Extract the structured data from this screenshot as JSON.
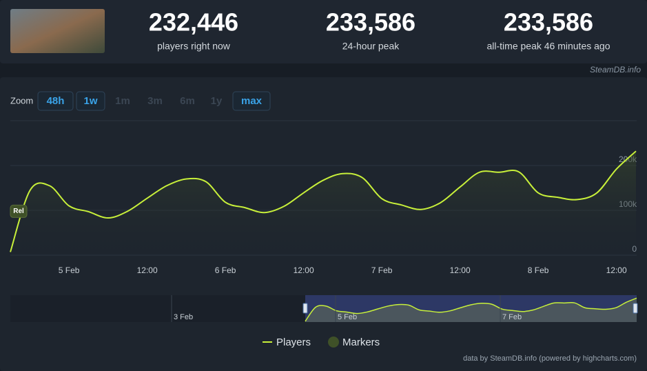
{
  "header": {
    "stats": [
      {
        "value": "232,446",
        "label": "players right now"
      },
      {
        "value": "233,586",
        "label": "24-hour peak"
      },
      {
        "value": "233,586",
        "label": "all-time peak 46 minutes ago"
      }
    ],
    "source": "SteamDB.info"
  },
  "zoom": {
    "label": "Zoom",
    "options": [
      {
        "text": "48h",
        "enabled": true
      },
      {
        "text": "1w",
        "enabled": true
      },
      {
        "text": "1m",
        "enabled": false
      },
      {
        "text": "3m",
        "enabled": false
      },
      {
        "text": "6m",
        "enabled": false
      },
      {
        "text": "1y",
        "enabled": false
      },
      {
        "text": "max",
        "enabled": true
      }
    ]
  },
  "chart_data": {
    "type": "line",
    "categories": [
      null,
      null,
      null,
      "5 Feb",
      null,
      null,
      null,
      "12:00",
      null,
      null,
      null,
      "6 Feb",
      null,
      null,
      null,
      "12:00",
      null,
      null,
      null,
      "7 Feb",
      null,
      null,
      null,
      "12:00",
      null,
      null,
      null,
      "8 Feb",
      null,
      null,
      null,
      "12:00",
      null
    ],
    "series": [
      {
        "name": "Players",
        "color": "#c8f03a",
        "values": [
          7000,
          144000,
          155000,
          110000,
          97000,
          83000,
          98000,
          127000,
          155000,
          170000,
          164000,
          118000,
          106000,
          95000,
          109000,
          139000,
          167000,
          182000,
          173000,
          126000,
          112000,
          102000,
          117000,
          152000,
          185000,
          185000,
          186000,
          139000,
          129000,
          124000,
          139000,
          192000,
          232000
        ]
      }
    ],
    "markers": {
      "name": "Markers",
      "color": "#3f5128",
      "items": [
        "Rel"
      ]
    },
    "ylim": [
      0,
      300000
    ],
    "yticks": [
      {
        "value": 0,
        "label": "0"
      },
      {
        "value": 100000,
        "label": "100k"
      },
      {
        "value": 200000,
        "label": "200k"
      }
    ],
    "grid": true,
    "navigator": {
      "labels": [
        "3 Feb",
        "5 Feb",
        "7 Feb"
      ]
    },
    "credit": "data by SteamDB.info (powered by highcharts.com)"
  }
}
